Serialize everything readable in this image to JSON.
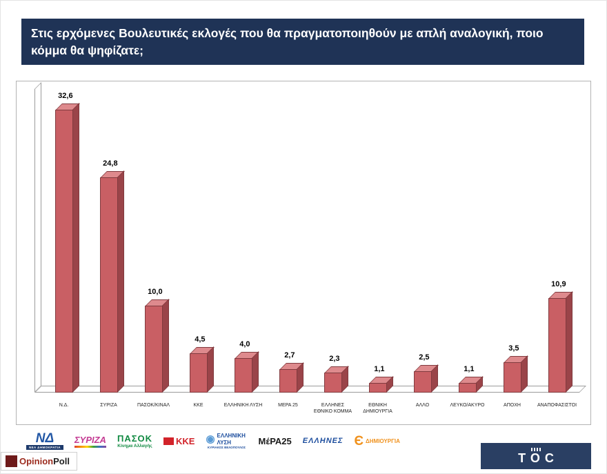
{
  "header": {
    "question": "Στις ερχόμενες Βουλευτικές εκλογές που θα πραγματοποιηθούν με απλή αναλογική, ποιο κόμμα θα ψηφίζατε;"
  },
  "chart_data": {
    "type": "bar",
    "title": "",
    "categories": [
      "Ν.Δ.",
      "ΣΥΡΙΖΑ",
      "ΠΑΣΟΚ/ΚΙΝΑΛ",
      "ΚΚΕ",
      "ΕΛΛΗΝΙΚΗ ΛΥΣΗ",
      "ΜΕΡΑ 25",
      "ΕΛΛΗΝΕΣ ΕΘΝΙΚΟ ΚΟΜΜΑ",
      "ΕΘΝΙΚΗ ΔΗΜΙΟΥΡΓΙΑ",
      "ΑΛΛΟ",
      "ΛΕΥΚΟ/ΑΚΥΡΟ",
      "ΑΠΟΧΗ",
      "ΑΝΑΠΟΦΑΣΙΣΤΟΙ"
    ],
    "values": [
      32.6,
      24.8,
      10.0,
      4.5,
      4.0,
      2.7,
      2.3,
      1.1,
      2.5,
      1.1,
      3.5,
      10.9
    ],
    "value_labels": [
      "32,6",
      "24,8",
      "10,0",
      "4,5",
      "4,0",
      "2,7",
      "2,3",
      "1,1",
      "2,5",
      "1,1",
      "3,5",
      "10,9"
    ],
    "xlabel": "",
    "ylabel": "",
    "ylim": [
      0,
      35
    ],
    "grid": false,
    "legend": false,
    "bar_color": "#c95f64",
    "bar_side_color": "#9a4449",
    "bar_top_color": "#de8a8d"
  },
  "logos": [
    {
      "name": "nea-dimokratia",
      "main": "ΝΔ",
      "main_color": "#2257a5",
      "caption": "ΝΕΑ ΔΗΜΟΚΡΑΤΙΑ",
      "caption_color": "#ffffff",
      "caption_bg": "#1d3a6b"
    },
    {
      "name": "syriza",
      "main": "ΣΥΡΙΖΑ",
      "main_color": "#c43b93",
      "caption": "",
      "stripe": true
    },
    {
      "name": "pasok",
      "main": "ΠΑΣΟΚ",
      "main_color": "#118a42",
      "caption": "Κίνημα Αλλαγής",
      "caption_color": "#118a42"
    },
    {
      "name": "kke",
      "main": "ΚΚΕ",
      "main_color": "#d2232a",
      "caption": ""
    },
    {
      "name": "elliniki-lysi",
      "emblem": "◉",
      "emblem_color": "#5b9bd5",
      "main": "ΕΛΛΗΝΙΚΗ ΛΥΣΗ",
      "main_color": "#1d4e9e",
      "caption": "ΚΥΡΙΑΚΟΣ ΒΕΛΟΠΟΥΛΟΣ",
      "caption_color": "#1d4e9e"
    },
    {
      "name": "mera25",
      "main": "ΜέΡΑ25",
      "main_color": "#1a1a1a",
      "caption": ""
    },
    {
      "name": "ellines",
      "main": "ΕΛΛΗΝΕΣ",
      "main_color": "#1d4e9e",
      "caption": ""
    },
    {
      "name": "dimiourgia",
      "emblem": "Є",
      "emblem_color": "#f0921e",
      "main": "ΔΗΜΙΟΥΡΓΙΑ",
      "main_color": "#f0921e",
      "caption": ""
    }
  ],
  "footer": {
    "opinion": "Opinion",
    "poll": "Poll",
    "toc": "TOC"
  }
}
